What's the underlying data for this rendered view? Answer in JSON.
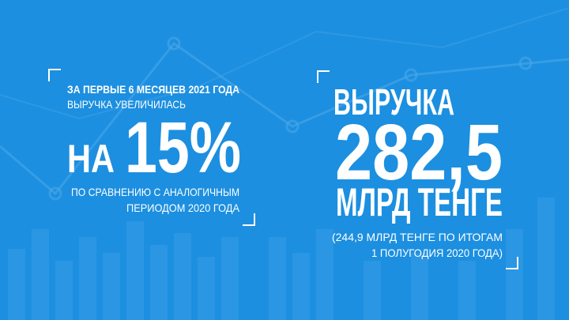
{
  "left": {
    "line1": "ЗА ПЕРВЫЕ 6 МЕСЯЦЕВ 2021 ГОДА",
    "line2": "ВЫРУЧКА УВЕЛИЧИЛАСЬ",
    "prefix": "НА",
    "percent": "15%",
    "note1": "ПО СРАВНЕНИЮ С АНАЛОГИЧНЫМ",
    "note2": "ПЕРИОДОМ 2020 ГОДА"
  },
  "right": {
    "label": "ВЫРУЧКА",
    "amount": "282,5",
    "unit": "МЛРД ТЕНГЕ",
    "note1": "(244,9 МЛРД ТЕНГЕ ПО ИТОГАМ",
    "note2": "1 ПОЛУГОДИЯ 2020 ГОДА)"
  }
}
